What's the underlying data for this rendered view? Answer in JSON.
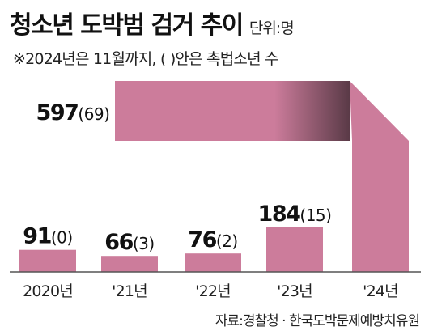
{
  "header": {
    "title": "청소년 도박범 검거 추이",
    "unit": "단위:명",
    "note": "※2024년은 11월까지, (  )안은 촉법소년 수"
  },
  "source": "자료:경찰청 · 한국도박문제예방치유원",
  "colors": {
    "bar": "#cc7c9b",
    "bar_dark": "#5a3a47",
    "baseline": "#555555"
  },
  "chart_data": {
    "type": "bar",
    "categories": [
      "2020년",
      "'21년",
      "'22년",
      "'23년",
      "'24년"
    ],
    "series": [
      {
        "values": [
          91,
          66,
          76,
          184,
          597
        ]
      },
      {
        "values": [
          0,
          3,
          2,
          15,
          69
        ]
      }
    ],
    "labels": [
      {
        "main": "91",
        "paren": "(0)"
      },
      {
        "main": "66",
        "paren": "(3)"
      },
      {
        "main": "76",
        "paren": "(2)"
      },
      {
        "main": "184",
        "paren": "(15)"
      },
      {
        "main": "597",
        "paren": "(69)"
      }
    ]
  }
}
